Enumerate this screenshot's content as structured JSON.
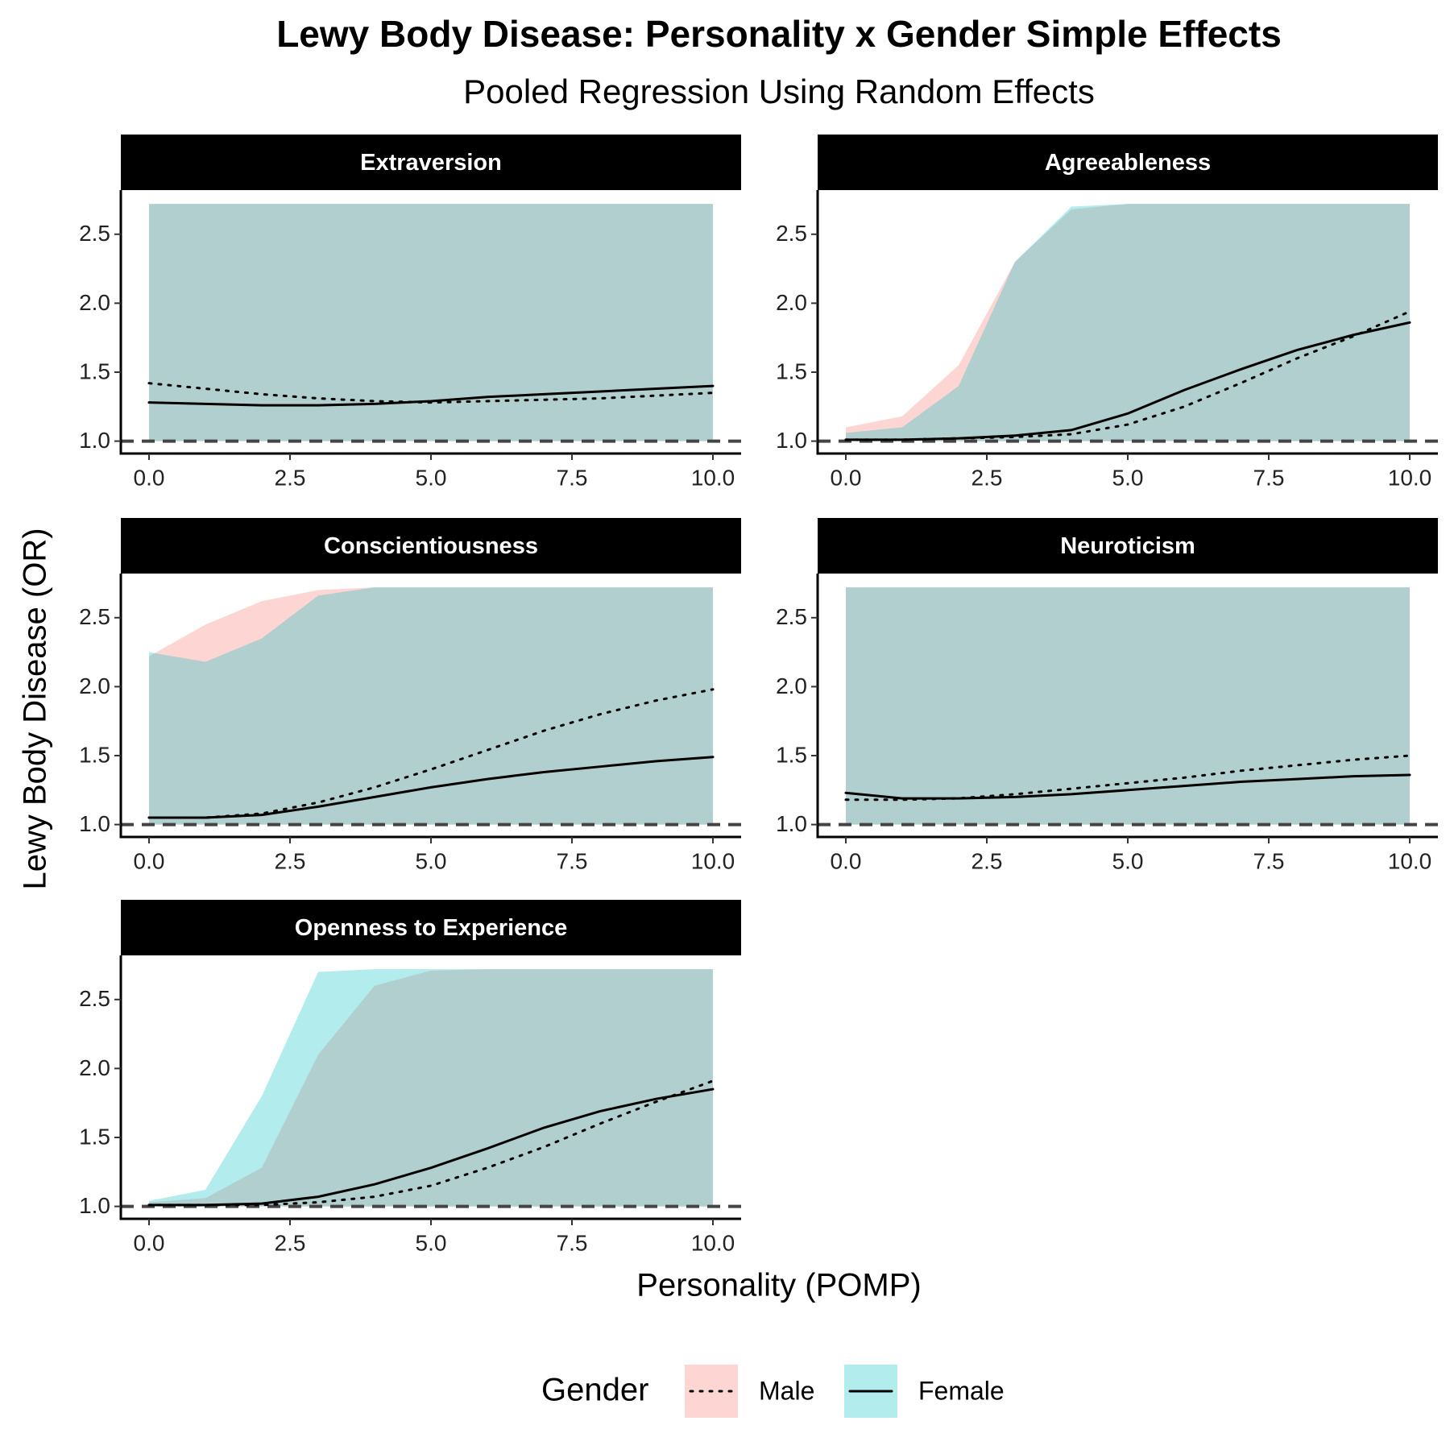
{
  "title": "Lewy Body Disease: Personality x Gender Simple Effects",
  "subtitle": "Pooled Regression Using Random Effects",
  "x_label": "Personality (POMP)",
  "y_label": "Lewy Body Disease (OR)",
  "legend_title": "Gender",
  "chart_data": [
    {
      "type": "line",
      "title": "Extraversion",
      "x": [
        0,
        1,
        2,
        3,
        4,
        5,
        6,
        7,
        8,
        9,
        10
      ],
      "hline": 1,
      "xlim": [
        -0.5,
        10.5
      ],
      "xticks": [
        {
          "value": 0,
          "label": "0.0"
        },
        2.5,
        {
          "value": 5,
          "label": "5.0"
        },
        7.5,
        {
          "value": 10,
          "label": "10.0"
        }
      ],
      "ylim": [
        0.91,
        2.82
      ],
      "yticks": [
        {
          "value": 1,
          "label": "1.0"
        },
        1.5,
        {
          "value": 2,
          "label": "2.0"
        },
        2.5
      ],
      "series": [
        {
          "name": "Male",
          "color": "#F8766D",
          "linestyle": "dotted",
          "values": [
            1.42,
            1.38,
            1.34,
            1.31,
            1.29,
            1.28,
            1.29,
            1.3,
            1.31,
            1.33,
            1.35
          ],
          "lower": [
            1,
            1,
            1,
            1,
            1,
            1,
            1,
            1,
            1,
            1,
            1
          ],
          "upper": [
            2.72,
            2.72,
            2.72,
            2.72,
            2.72,
            2.72,
            2.72,
            2.72,
            2.72,
            2.72,
            2.72
          ]
        },
        {
          "name": "Female",
          "color": "#00BFC4",
          "linestyle": "solid",
          "values": [
            1.28,
            1.27,
            1.26,
            1.26,
            1.27,
            1.29,
            1.32,
            1.34,
            1.36,
            1.38,
            1.4
          ],
          "lower": [
            1,
            1,
            1,
            1,
            1,
            1,
            1,
            1,
            1,
            1,
            1
          ],
          "upper": [
            2.72,
            2.72,
            2.72,
            2.72,
            2.72,
            2.72,
            2.72,
            2.72,
            2.72,
            2.72,
            2.72
          ]
        }
      ]
    },
    {
      "type": "line",
      "title": "Agreeableness",
      "x": [
        0,
        1,
        2,
        3,
        4,
        5,
        6,
        7,
        8,
        9,
        10
      ],
      "hline": 1,
      "xlim": [
        -0.5,
        10.5
      ],
      "xticks": [
        {
          "value": 0,
          "label": "0.0"
        },
        2.5,
        {
          "value": 5,
          "label": "5.0"
        },
        7.5,
        {
          "value": 10,
          "label": "10.0"
        }
      ],
      "ylim": [
        0.91,
        2.82
      ],
      "yticks": [
        {
          "value": 1,
          "label": "1.0"
        },
        1.5,
        {
          "value": 2,
          "label": "2.0"
        },
        2.5
      ],
      "series": [
        {
          "name": "Male",
          "color": "#F8766D",
          "linestyle": "dotted",
          "values": [
            1.01,
            1.01,
            1.02,
            1.03,
            1.05,
            1.12,
            1.25,
            1.42,
            1.6,
            1.76,
            1.94
          ],
          "lower": [
            1,
            1,
            1,
            1,
            1,
            1,
            1,
            1,
            1,
            1,
            1
          ],
          "upper": [
            1.1,
            1.18,
            1.55,
            2.3,
            2.68,
            2.72,
            2.72,
            2.72,
            2.72,
            2.72,
            2.72
          ]
        },
        {
          "name": "Female",
          "color": "#00BFC4",
          "linestyle": "solid",
          "values": [
            1.01,
            1.01,
            1.02,
            1.04,
            1.08,
            1.2,
            1.37,
            1.52,
            1.66,
            1.77,
            1.86
          ],
          "lower": [
            1,
            1,
            1,
            1,
            1,
            1,
            1,
            1,
            1,
            1,
            1
          ],
          "upper": [
            1.06,
            1.1,
            1.4,
            2.3,
            2.7,
            2.72,
            2.72,
            2.72,
            2.72,
            2.72,
            2.72
          ]
        }
      ]
    },
    {
      "type": "line",
      "title": "Conscientiousness",
      "x": [
        0,
        1,
        2,
        3,
        4,
        5,
        6,
        7,
        8,
        9,
        10
      ],
      "hline": 1,
      "xlim": [
        -0.5,
        10.5
      ],
      "xticks": [
        {
          "value": 0,
          "label": "0.0"
        },
        2.5,
        {
          "value": 5,
          "label": "5.0"
        },
        7.5,
        {
          "value": 10,
          "label": "10.0"
        }
      ],
      "ylim": [
        0.91,
        2.82
      ],
      "yticks": [
        {
          "value": 1,
          "label": "1.0"
        },
        1.5,
        {
          "value": 2,
          "label": "2.0"
        },
        2.5
      ],
      "series": [
        {
          "name": "Male",
          "color": "#F8766D",
          "linestyle": "dotted",
          "values": [
            1.05,
            1.05,
            1.08,
            1.16,
            1.27,
            1.4,
            1.54,
            1.68,
            1.8,
            1.9,
            1.98
          ],
          "lower": [
            1,
            1,
            1,
            1,
            1,
            1,
            1,
            1,
            1,
            1,
            1
          ],
          "upper": [
            2.22,
            2.45,
            2.62,
            2.7,
            2.72,
            2.72,
            2.72,
            2.72,
            2.72,
            2.72,
            2.72
          ]
        },
        {
          "name": "Female",
          "color": "#00BFC4",
          "linestyle": "solid",
          "values": [
            1.05,
            1.05,
            1.07,
            1.13,
            1.2,
            1.27,
            1.33,
            1.38,
            1.42,
            1.46,
            1.49
          ],
          "lower": [
            1,
            1,
            1,
            1,
            1,
            1,
            1,
            1,
            1,
            1,
            1
          ],
          "upper": [
            2.25,
            2.18,
            2.35,
            2.66,
            2.72,
            2.72,
            2.72,
            2.72,
            2.72,
            2.72,
            2.72
          ]
        }
      ]
    },
    {
      "type": "line",
      "title": "Neuroticism",
      "x": [
        0,
        1,
        2,
        3,
        4,
        5,
        6,
        7,
        8,
        9,
        10
      ],
      "hline": 1,
      "xlim": [
        -0.5,
        10.5
      ],
      "xticks": [
        {
          "value": 0,
          "label": "0.0"
        },
        2.5,
        {
          "value": 5,
          "label": "5.0"
        },
        7.5,
        {
          "value": 10,
          "label": "10.0"
        }
      ],
      "ylim": [
        0.91,
        2.82
      ],
      "yticks": [
        {
          "value": 1,
          "label": "1.0"
        },
        1.5,
        {
          "value": 2,
          "label": "2.0"
        },
        2.5
      ],
      "series": [
        {
          "name": "Male",
          "color": "#F8766D",
          "linestyle": "dotted",
          "values": [
            1.18,
            1.18,
            1.19,
            1.22,
            1.26,
            1.3,
            1.34,
            1.39,
            1.43,
            1.47,
            1.5
          ],
          "lower": [
            1,
            1,
            1,
            1,
            1,
            1,
            1,
            1,
            1,
            1,
            1
          ],
          "upper": [
            2.72,
            2.72,
            2.72,
            2.72,
            2.72,
            2.72,
            2.72,
            2.72,
            2.72,
            2.72,
            2.72
          ]
        },
        {
          "name": "Female",
          "color": "#00BFC4",
          "linestyle": "solid",
          "values": [
            1.23,
            1.19,
            1.19,
            1.2,
            1.22,
            1.25,
            1.28,
            1.31,
            1.33,
            1.35,
            1.36
          ],
          "lower": [
            1,
            1,
            1,
            1,
            1,
            1,
            1,
            1,
            1,
            1,
            1
          ],
          "upper": [
            2.72,
            2.72,
            2.72,
            2.72,
            2.72,
            2.72,
            2.72,
            2.72,
            2.72,
            2.72,
            2.72
          ]
        }
      ]
    },
    {
      "type": "line",
      "title": "Openness to Experience",
      "x": [
        0,
        1,
        2,
        3,
        4,
        5,
        6,
        7,
        8,
        9,
        10
      ],
      "hline": 1,
      "xlim": [
        -0.5,
        10.5
      ],
      "xticks": [
        {
          "value": 0,
          "label": "0.0"
        },
        2.5,
        {
          "value": 5,
          "label": "5.0"
        },
        7.5,
        {
          "value": 10,
          "label": "10.0"
        }
      ],
      "ylim": [
        0.91,
        2.82
      ],
      "yticks": [
        {
          "value": 1,
          "label": "1.0"
        },
        1.5,
        {
          "value": 2,
          "label": "2.0"
        },
        2.5
      ],
      "series": [
        {
          "name": "Male",
          "color": "#F8766D",
          "linestyle": "dotted",
          "values": [
            1.01,
            1.01,
            1.01,
            1.03,
            1.07,
            1.15,
            1.28,
            1.43,
            1.6,
            1.76,
            1.91
          ],
          "lower": [
            1,
            1,
            1,
            1,
            1,
            1,
            1,
            1,
            1,
            1,
            1
          ],
          "upper": [
            1.03,
            1.06,
            1.28,
            2.1,
            2.6,
            2.71,
            2.72,
            2.72,
            2.72,
            2.72,
            2.72
          ]
        },
        {
          "name": "Female",
          "color": "#00BFC4",
          "linestyle": "solid",
          "values": [
            1.01,
            1.01,
            1.02,
            1.07,
            1.16,
            1.28,
            1.42,
            1.57,
            1.69,
            1.78,
            1.85
          ],
          "lower": [
            1,
            1,
            1,
            1,
            1,
            1,
            1,
            1,
            1,
            1,
            1
          ],
          "upper": [
            1.04,
            1.12,
            1.8,
            2.7,
            2.72,
            2.72,
            2.72,
            2.72,
            2.72,
            2.72,
            2.72
          ]
        }
      ]
    }
  ]
}
